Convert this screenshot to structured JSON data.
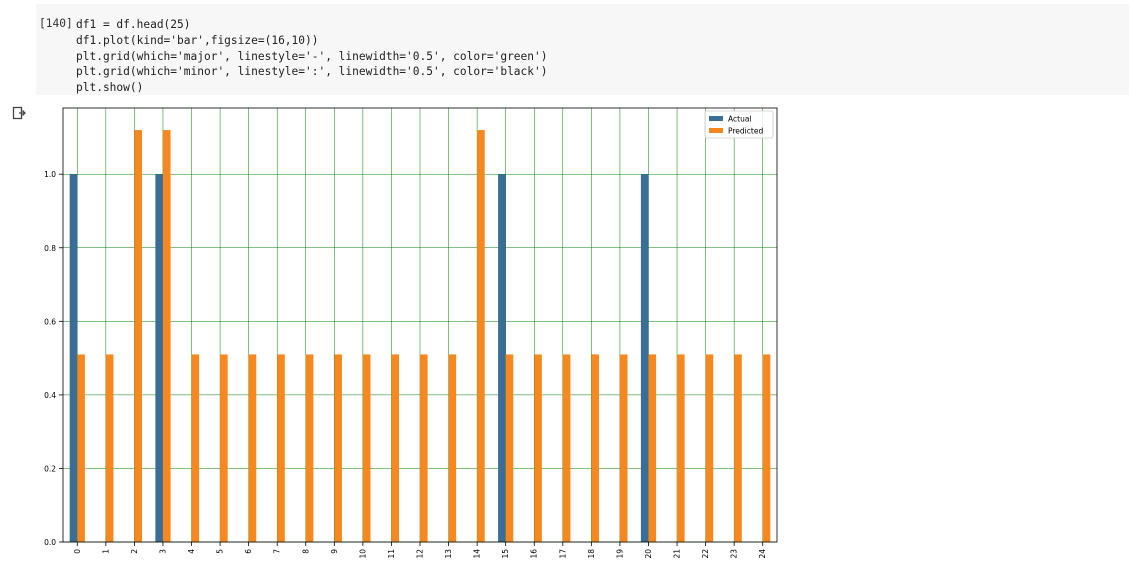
{
  "cell": {
    "prompt": "[140]",
    "code_lines": [
      "df1 = df.head(25)",
      "df1.plot(kind='bar',figsize=(16,10))",
      "plt.grid(which='major', linestyle='-', linewidth='0.5', color='green')",
      "plt.grid(which='minor', linestyle=':', linewidth='0.5', color='black')",
      "plt.show()"
    ],
    "output_icon": "output-icon"
  },
  "chart_data": {
    "type": "bar",
    "categories": [
      "0",
      "1",
      "2",
      "3",
      "4",
      "5",
      "6",
      "7",
      "8",
      "9",
      "10",
      "11",
      "12",
      "13",
      "14",
      "15",
      "16",
      "17",
      "18",
      "19",
      "20",
      "21",
      "22",
      "23",
      "24"
    ],
    "series": [
      {
        "name": "Actual",
        "color": "#3a6e96",
        "values": [
          1,
          0,
          0,
          1,
          0,
          0,
          0,
          0,
          0,
          0,
          0,
          0,
          0,
          0,
          0,
          1,
          0,
          0,
          0,
          0,
          1,
          0,
          0,
          0,
          0
        ]
      },
      {
        "name": "Predicted",
        "color": "#f7871f",
        "values": [
          0.51,
          0.51,
          1.12,
          1.12,
          0.51,
          0.51,
          0.51,
          0.51,
          0.51,
          0.51,
          0.51,
          0.51,
          0.51,
          0.51,
          1.12,
          0.51,
          0.51,
          0.51,
          0.51,
          0.51,
          0.51,
          0.51,
          0.51,
          0.51,
          0.51
        ]
      }
    ],
    "yticks": [
      "0.0",
      "0.2",
      "0.4",
      "0.6",
      "0.8",
      "1.0"
    ],
    "ylim": [
      0,
      1.18
    ],
    "grid": true,
    "grid_color": "#008000",
    "legend_position": "top-right"
  }
}
